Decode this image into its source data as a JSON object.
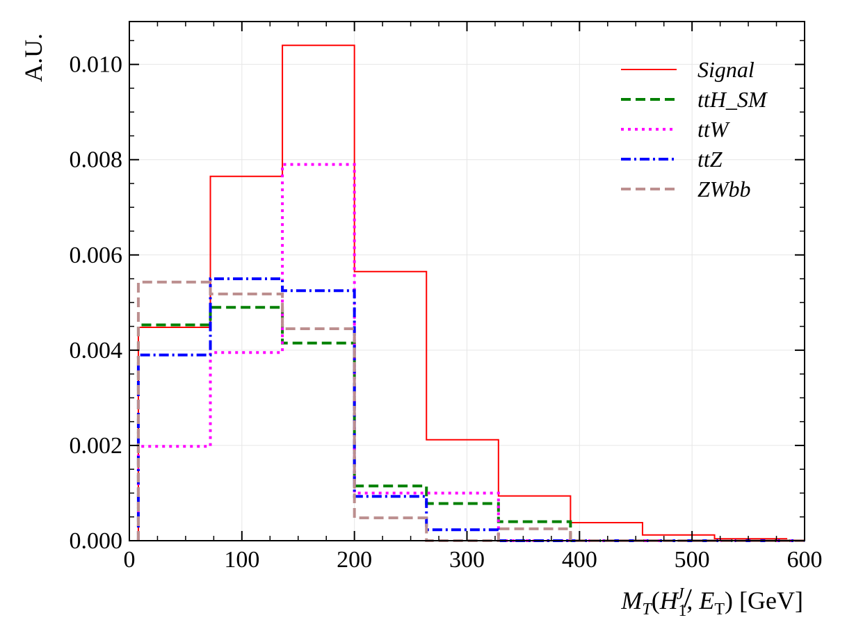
{
  "chart_data": {
    "type": "histogram",
    "xlabel": "M_T(H_1^J, E_T) [GeV]",
    "ylabel": "A.U.",
    "xlim": [
      0,
      600
    ],
    "ylim": [
      0,
      0.0109
    ],
    "grid": true,
    "legend_position": "top-right",
    "x_ticks": [
      0,
      100,
      200,
      300,
      400,
      500,
      600
    ],
    "x_tick_labels": [
      "0",
      "100",
      "200",
      "300",
      "400",
      "500",
      "600"
    ],
    "y_ticks": [
      0,
      0.002,
      0.004,
      0.006,
      0.008,
      0.01
    ],
    "y_tick_labels": [
      "0.000",
      "0.002",
      "0.004",
      "0.006",
      "0.008",
      "0.010"
    ],
    "bin_edges": [
      8,
      72,
      136,
      200,
      264,
      328,
      392,
      456,
      520,
      584,
      600
    ],
    "series": [
      {
        "name": "Signal",
        "color": "#ff0000",
        "style": "solid",
        "values": [
          0.00448,
          0.00765,
          0.0104,
          0.00565,
          0.00212,
          0.00094,
          0.00038,
          0.00012,
          4e-05,
          1e-05
        ]
      },
      {
        "name": "ttH_SM",
        "color": "#008000",
        "style": "dashed",
        "values": [
          0.00453,
          0.0049,
          0.00415,
          0.00115,
          0.00078,
          0.0004,
          0.0,
          0.0,
          0.0,
          0.0
        ]
      },
      {
        "name": "ttW",
        "color": "#ff00ff",
        "style": "dotted",
        "values": [
          0.00198,
          0.00395,
          0.0079,
          0.001,
          0.001,
          0.0,
          0.0,
          0.0,
          0.0,
          0.0
        ]
      },
      {
        "name": "ttZ",
        "color": "#0000ff",
        "style": "dashdot",
        "values": [
          0.0039,
          0.0055,
          0.00525,
          0.00093,
          0.00023,
          0.0,
          0.0,
          0.0,
          0.0,
          0.0
        ]
      },
      {
        "name": "ZWbb",
        "color": "#bc8f8f",
        "style": "dashed",
        "values": [
          0.00543,
          0.00518,
          0.00445,
          0.00048,
          0.0,
          0.00025,
          0.0,
          0.0,
          0.0,
          0.0
        ]
      }
    ]
  }
}
